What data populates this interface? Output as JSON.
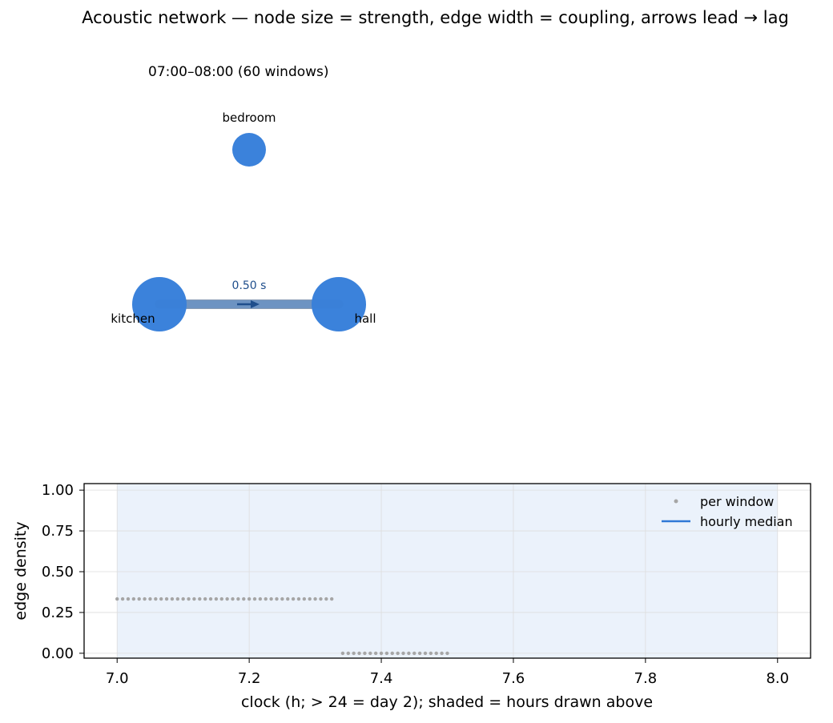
{
  "figure": {
    "title": "Acoustic network — node size = strength, edge width = coupling, arrows lead → lag"
  },
  "network": {
    "subtitle": "07:00–08:00 (60 windows)",
    "nodes": [
      {
        "id": "bedroom",
        "label": "bedroom",
        "strength": 0.0
      },
      {
        "id": "kitchen",
        "label": "kitchen",
        "strength": 1.0
      },
      {
        "id": "hall",
        "label": "hall",
        "strength": 1.0
      }
    ],
    "edges": [
      {
        "source": "kitchen",
        "target": "hall",
        "lag_label": "0.50 s",
        "direction": "kitchen→hall"
      }
    ],
    "colors": {
      "node": "#3b82db",
      "edge": "#aaaaaa",
      "arrow": "#1f4e8c"
    }
  },
  "chart_data": {
    "type": "scatter",
    "xlabel": "clock (h; > 24 = day 2); shaded = hours drawn above",
    "ylabel": "edge density",
    "xlim": [
      6.95,
      8.05
    ],
    "ylim": [
      -0.03,
      1.04
    ],
    "xticks": [
      "7.0",
      "7.2",
      "7.4",
      "7.6",
      "7.8",
      "8.0"
    ],
    "yticks": [
      "0.00",
      "0.25",
      "0.50",
      "0.75",
      "1.00"
    ],
    "grid": true,
    "legend_position": "top-right",
    "shaded_region": [
      7.0,
      8.0
    ],
    "series": [
      {
        "name": "per window",
        "kind": "points",
        "color": "#a6a6a6",
        "segments": [
          {
            "x_start": 7.0,
            "x_end": 7.3333,
            "step": 0.008333,
            "y": 0.333
          },
          {
            "x_start": 7.3333,
            "x_end": 7.5,
            "step": 0.008333,
            "y": 0.0
          }
        ]
      },
      {
        "name": "hourly median",
        "kind": "line",
        "color": "#2f78d6",
        "values": []
      }
    ],
    "colors": {
      "shade": "#ebf2fb",
      "grid": "#dddddd"
    }
  }
}
